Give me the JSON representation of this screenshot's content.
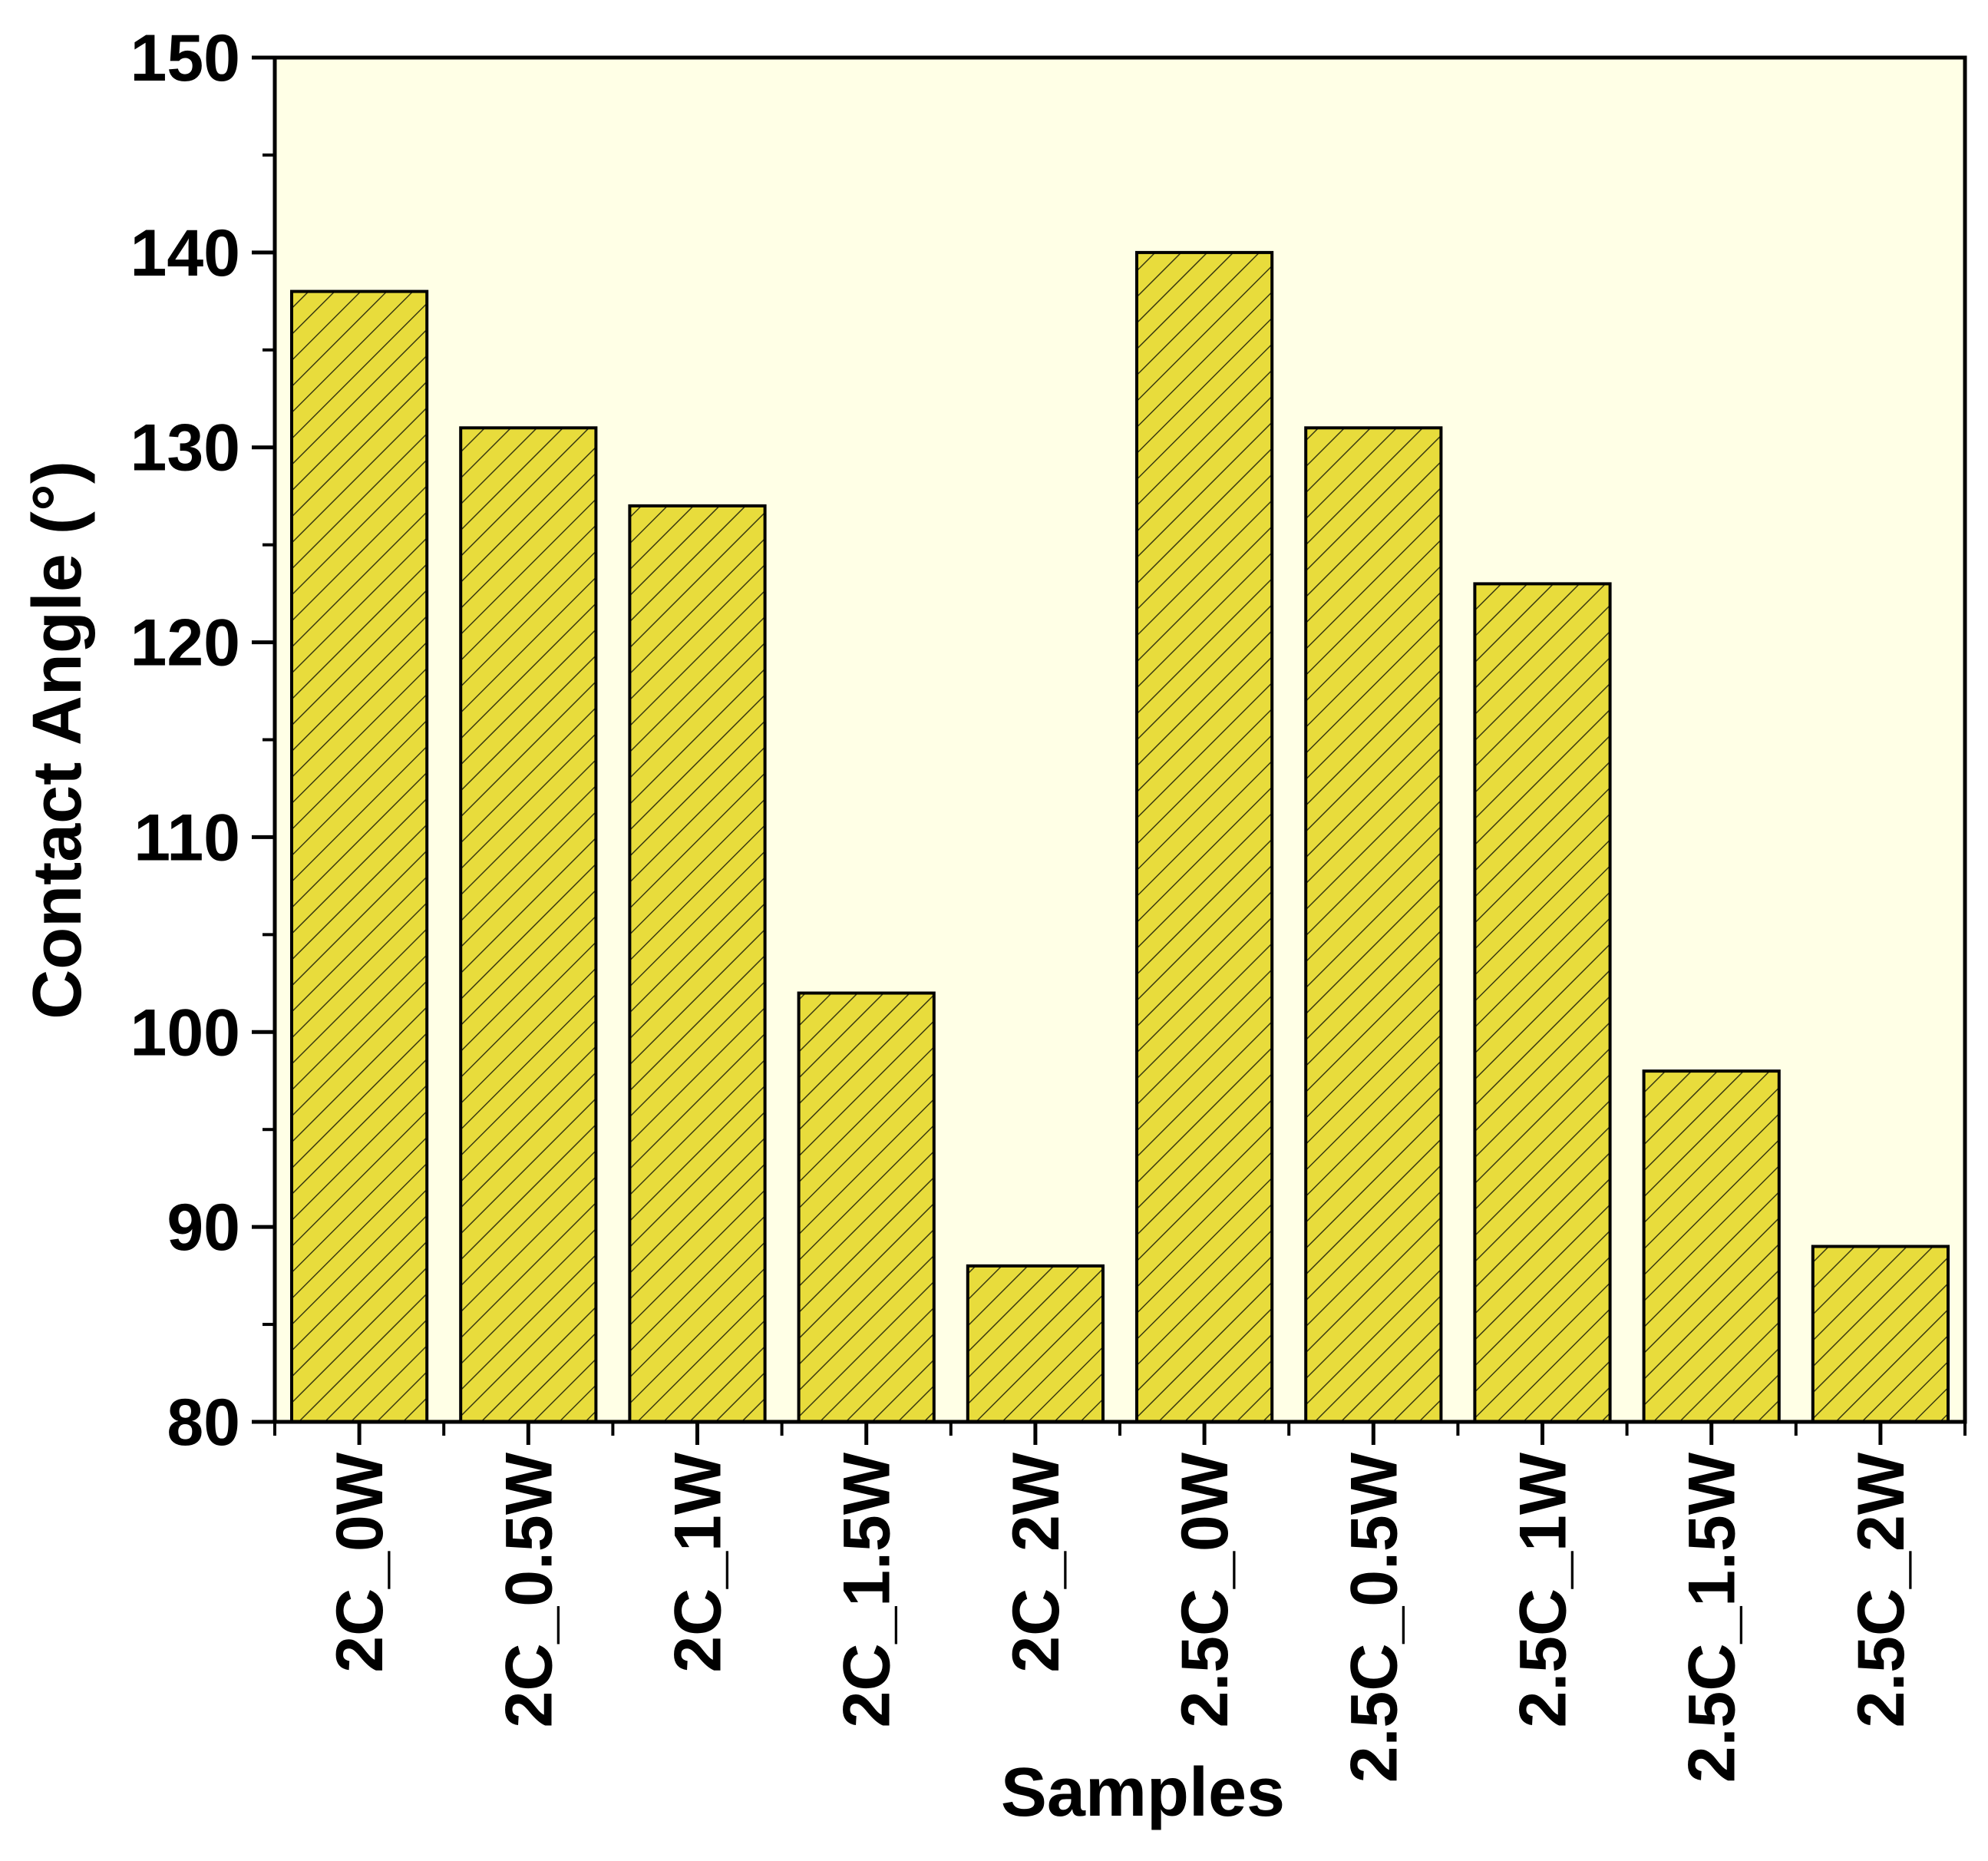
{
  "chart_data": {
    "type": "bar",
    "title": "",
    "xlabel": "Samples",
    "ylabel": "Contact Angle (°)",
    "categories": [
      "2C_0W",
      "2C_0.5W",
      "2C_1W",
      "2C_1.5W",
      "2C_2W",
      "2.5C_0W",
      "2.5C_0.5W",
      "2.5C_1W",
      "2.5C_1.5W",
      "2.5C_2W"
    ],
    "values": [
      138,
      131,
      127,
      102,
      88,
      140,
      131,
      123,
      98,
      89
    ],
    "ylim": [
      80,
      150
    ],
    "yticks": [
      80,
      90,
      100,
      110,
      120,
      130,
      140,
      150
    ],
    "yticks_labels": [
      "80",
      "90",
      "100",
      "110",
      "120",
      "130",
      "140",
      "150"
    ],
    "grid": false,
    "legend": "none",
    "colors": {
      "plot_background": "#FFFFE6",
      "bar_fill": "#E8DC3C",
      "bar_hatch": "#3A3A10",
      "bar_edge": "#000000",
      "axis": "#000000"
    }
  }
}
